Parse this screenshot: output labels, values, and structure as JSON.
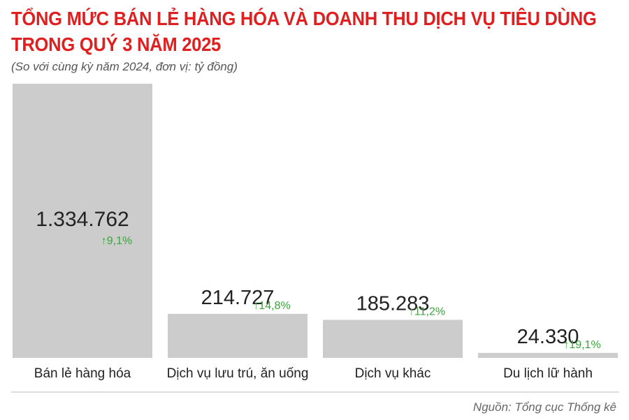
{
  "title_lines": [
    "TỔNG MỨC BÁN LẺ HÀNG HÓA VÀ DOANH THU DỊCH VỤ TIÊU DÙNG",
    "TRONG QUÝ 3 NĂM 2025"
  ],
  "subtitle": "(So với cùng kỳ năm 2024, đơn vị: tỷ đồng)",
  "source": "Nguồn: Tổng cục Thống kê",
  "colors": {
    "title": "#e02020",
    "bar": "#cccccc",
    "value_text": "#222222",
    "growth": "#3aa43a",
    "axis": "#dddddd",
    "label": "#222222"
  },
  "chart_data": {
    "type": "bar",
    "categories": [
      "Bán lẻ hàng hóa",
      "Dịch vụ lưu trú, ăn uống",
      "Dịch vụ khác",
      "Du lịch lữ hành"
    ],
    "values": [
      1334762,
      214727,
      185283,
      24330
    ],
    "value_labels": [
      "1.334.762",
      "214.727",
      "185.283",
      "24.330"
    ],
    "growth_labels": [
      "9,1%",
      "14,8%",
      "11,2%",
      "19,1%"
    ],
    "growth_arrow": "↑",
    "ylim": [
      0,
      1334762
    ],
    "grid": false,
    "legend": "none"
  }
}
